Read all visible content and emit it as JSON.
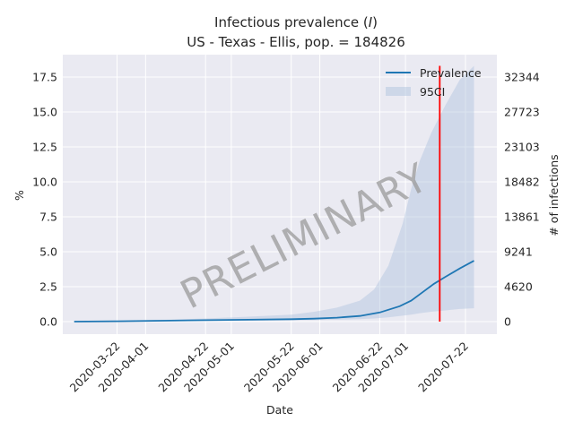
{
  "chart_data": {
    "type": "line",
    "title_line1_prefix": "Infectious prevalence (",
    "title_line1_var": "I",
    "title_line1_suffix": ")",
    "title_line2": "US - Texas - Ellis, pop. = 184826",
    "xlabel": "Date",
    "ylabel_left": "%",
    "ylabel_right": "# of infections",
    "watermark": "PRELIMINARY",
    "x_ticks": [
      "2020-03-22",
      "2020-04-01",
      "2020-04-22",
      "2020-05-01",
      "2020-05-22",
      "2020-06-01",
      "2020-06-22",
      "2020-07-01",
      "2020-07-22"
    ],
    "y_ticks_left": [
      "0.0",
      "2.5",
      "5.0",
      "7.5",
      "10.0",
      "12.5",
      "15.0",
      "17.5"
    ],
    "y_ticks_left_values": [
      0,
      2.5,
      5,
      7.5,
      10,
      12.5,
      15,
      17.5
    ],
    "y_ticks_right": [
      "0",
      "4620",
      "9241",
      "13861",
      "18482",
      "23103",
      "27723",
      "32344"
    ],
    "ylim": [
      -0.9,
      19.1
    ],
    "xlim": [
      "2020-03-03",
      "2020-08-02"
    ],
    "grid": true,
    "legend_position": "top-right",
    "series": [
      {
        "name": "Prevalence",
        "color": "#1f77b4",
        "x": [
          "2020-03-07",
          "2020-03-22",
          "2020-04-07",
          "2020-04-22",
          "2020-05-07",
          "2020-05-22",
          "2020-05-30",
          "2020-06-07",
          "2020-06-15",
          "2020-06-22",
          "2020-06-29",
          "2020-07-03",
          "2020-07-07",
          "2020-07-11",
          "2020-07-15",
          "2020-07-20",
          "2020-07-25"
        ],
        "values": [
          0.0,
          0.02,
          0.06,
          0.1,
          0.13,
          0.17,
          0.21,
          0.28,
          0.4,
          0.65,
          1.1,
          1.5,
          2.1,
          2.7,
          3.2,
          3.8,
          4.35
        ]
      }
    ],
    "band": {
      "name": "95CI",
      "color": "#b0c4de",
      "x": [
        "2020-03-07",
        "2020-03-22",
        "2020-04-07",
        "2020-04-22",
        "2020-05-07",
        "2020-05-22",
        "2020-05-30",
        "2020-06-07",
        "2020-06-15",
        "2020-06-20",
        "2020-06-25",
        "2020-06-30",
        "2020-07-03",
        "2020-07-06",
        "2020-07-10",
        "2020-07-15",
        "2020-07-20",
        "2020-07-25"
      ],
      "lower": [
        0.0,
        0.01,
        0.03,
        0.05,
        0.07,
        0.09,
        0.1,
        0.13,
        0.17,
        0.22,
        0.3,
        0.42,
        0.5,
        0.6,
        0.7,
        0.8,
        0.9,
        0.95
      ],
      "upper": [
        0.0,
        0.05,
        0.12,
        0.22,
        0.35,
        0.5,
        0.7,
        1.0,
        1.5,
        2.3,
        4.0,
        7.0,
        9.5,
        11.5,
        13.5,
        15.5,
        17.3,
        18.3
      ]
    },
    "vline": {
      "date": "2020-07-13",
      "color": "#ff0000"
    }
  }
}
